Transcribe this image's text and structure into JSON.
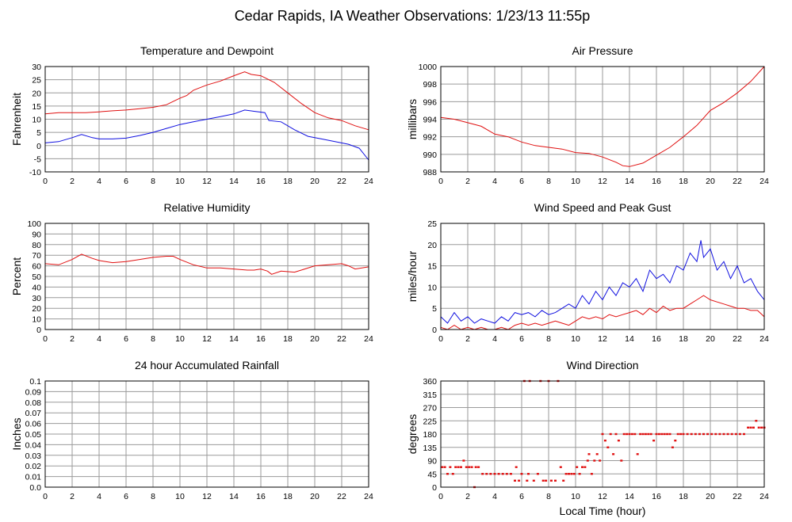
{
  "page_title": "Cedar Rapids, IA Weather Observations: 1/23/13 11:55p",
  "x_axis_label": "Local Time (hour)",
  "colors": {
    "red": "#e01010",
    "blue": "#1010e0",
    "grid": "#9a9a9a"
  },
  "chart_data": [
    {
      "type": "line",
      "title": "Temperature and Dewpoint",
      "ylabel": "Fahrenheit",
      "xlim": [
        0,
        24
      ],
      "ylim": [
        -10,
        30
      ],
      "xticks": [
        0,
        2,
        4,
        6,
        8,
        10,
        12,
        14,
        16,
        18,
        20,
        22,
        24
      ],
      "yticks": [
        -10,
        -5,
        0,
        5,
        10,
        15,
        20,
        25,
        30
      ],
      "grid": true,
      "series": [
        {
          "color": "#e01010",
          "x": [
            0,
            1,
            2,
            3,
            4,
            5,
            6,
            7,
            8,
            9,
            10,
            10.5,
            11,
            12,
            13,
            14,
            14.8,
            15.3,
            16,
            17,
            18,
            19,
            20,
            21,
            22,
            23,
            24
          ],
          "y": [
            12,
            12.5,
            12.5,
            12.5,
            12.8,
            13.2,
            13.5,
            14,
            14.5,
            15.5,
            18,
            19,
            21,
            23,
            24.5,
            26.5,
            28,
            27,
            26.5,
            24,
            20,
            16,
            12.5,
            10.5,
            9.5,
            7.5,
            6
          ]
        },
        {
          "color": "#1010e0",
          "x": [
            0,
            1,
            2,
            2.7,
            3.5,
            4,
            5,
            6,
            7,
            8,
            9,
            10,
            11,
            12,
            13,
            14,
            14.8,
            15.5,
            16.3,
            16.6,
            17.5,
            18.5,
            19.5,
            20.5,
            21.5,
            22.5,
            23.3,
            24
          ],
          "y": [
            1,
            1.5,
            3,
            4.2,
            3,
            2.5,
            2.5,
            2.8,
            3.8,
            5,
            6.5,
            8,
            9,
            10,
            11,
            12,
            13.5,
            13,
            12.5,
            9.5,
            9,
            6,
            3.5,
            2.5,
            1.5,
            0.5,
            -1,
            -5.5
          ]
        }
      ]
    },
    {
      "type": "line",
      "title": "Air Pressure",
      "ylabel": "millibars",
      "xlim": [
        0,
        24
      ],
      "ylim": [
        988,
        1000
      ],
      "xticks": [
        0,
        2,
        4,
        6,
        8,
        10,
        12,
        14,
        16,
        18,
        20,
        22,
        24
      ],
      "yticks": [
        988,
        990,
        992,
        994,
        996,
        998,
        1000
      ],
      "grid": true,
      "series": [
        {
          "color": "#e01010",
          "x": [
            0,
            1,
            2,
            3,
            4,
            5,
            6,
            7,
            8,
            9,
            10,
            11,
            12,
            13,
            13.5,
            14,
            15,
            16,
            17,
            18,
            19,
            20,
            21,
            22,
            23,
            24
          ],
          "y": [
            994.2,
            994,
            993.6,
            993.2,
            992.3,
            992,
            991.4,
            991,
            990.8,
            990.6,
            990.2,
            990.1,
            989.7,
            989.1,
            988.7,
            988.6,
            989,
            989.9,
            990.8,
            992,
            993.3,
            995,
            995.9,
            997,
            998.3,
            1000
          ]
        }
      ]
    },
    {
      "type": "line",
      "title": "Relative Humidity",
      "ylabel": "Percent",
      "xlim": [
        0,
        24
      ],
      "ylim": [
        0,
        100
      ],
      "xticks": [
        0,
        2,
        4,
        6,
        8,
        10,
        12,
        14,
        16,
        18,
        20,
        22,
        24
      ],
      "yticks": [
        0,
        10,
        20,
        30,
        40,
        50,
        60,
        70,
        80,
        90,
        100
      ],
      "grid": true,
      "series": [
        {
          "color": "#e01010",
          "x": [
            0,
            1,
            2,
            2.7,
            3.5,
            4,
            5,
            6,
            7,
            8,
            9,
            9.5,
            10,
            11,
            12,
            13,
            14,
            15,
            15.5,
            16,
            16.5,
            16.8,
            17.5,
            18.5,
            19,
            20,
            21,
            22,
            22.5,
            23,
            24
          ],
          "y": [
            62,
            61,
            66,
            71,
            67,
            65,
            63,
            64,
            66,
            68,
            69,
            69,
            66,
            61,
            58,
            58,
            57,
            56,
            56,
            57,
            55,
            52,
            55,
            54,
            56,
            60,
            61,
            62,
            60,
            57,
            59
          ]
        }
      ]
    },
    {
      "type": "line",
      "title": "Wind Speed and Peak Gust",
      "ylabel": "miles/hour",
      "xlim": [
        0,
        24
      ],
      "ylim": [
        0,
        25
      ],
      "xticks": [
        0,
        2,
        4,
        6,
        8,
        10,
        12,
        14,
        16,
        18,
        20,
        22,
        24
      ],
      "yticks": [
        0,
        5,
        10,
        15,
        20,
        25
      ],
      "grid": true,
      "series": [
        {
          "color": "#1010e0",
          "x": [
            0,
            0.5,
            1,
            1.5,
            2,
            2.5,
            3,
            3.5,
            4,
            4.5,
            5,
            5.5,
            6,
            6.5,
            7,
            7.5,
            8,
            8.5,
            9,
            9.5,
            10,
            10.5,
            11,
            11.5,
            12,
            12.5,
            13,
            13.5,
            14,
            14.5,
            15,
            15.5,
            16,
            16.5,
            17,
            17.5,
            18,
            18.5,
            19,
            19.3,
            19.5,
            20,
            20.5,
            21,
            21.5,
            22,
            22.5,
            23,
            23.5,
            24
          ],
          "y": [
            3,
            1.5,
            4,
            2,
            3,
            1.5,
            2.5,
            2,
            1.5,
            3,
            2,
            4,
            3.5,
            4,
            3,
            4.5,
            3.5,
            4,
            5,
            6,
            5,
            8,
            6,
            9,
            7,
            10,
            8,
            11,
            10,
            12,
            9,
            14,
            12,
            13,
            11,
            15,
            14,
            18,
            16,
            21,
            17,
            19,
            14,
            16,
            12,
            15,
            11,
            12,
            9,
            7
          ]
        },
        {
          "color": "#e01010",
          "x": [
            0,
            0.5,
            1,
            1.5,
            2,
            2.5,
            3,
            3.5,
            4,
            4.5,
            5,
            5.5,
            6,
            6.5,
            7,
            7.5,
            8,
            8.5,
            9,
            9.5,
            10,
            10.5,
            11,
            11.5,
            12,
            12.5,
            13,
            13.5,
            14,
            14.5,
            15,
            15.5,
            16,
            16.5,
            17,
            17.5,
            18,
            18.5,
            19,
            19.5,
            20,
            20.5,
            21,
            21.5,
            22,
            22.5,
            23,
            23.5,
            24
          ],
          "y": [
            0.5,
            0,
            1,
            0,
            0.5,
            0,
            0.5,
            0,
            0,
            0.5,
            0,
            1,
            1.5,
            1,
            1.5,
            1,
            1.5,
            2,
            1.5,
            1,
            2,
            3,
            2.5,
            3,
            2.5,
            3.5,
            3,
            3.5,
            4,
            4.5,
            3.5,
            5,
            4,
            5.5,
            4.5,
            5,
            5,
            6,
            7,
            8,
            7,
            6.5,
            6,
            5.5,
            5,
            5,
            4.5,
            4.5,
            3
          ]
        }
      ]
    },
    {
      "type": "line",
      "title": "24 hour Accumulated Rainfall",
      "ylabel": "Inches",
      "xlim": [
        0,
        24
      ],
      "ylim": [
        0,
        0.1
      ],
      "xticks": [
        0,
        2,
        4,
        6,
        8,
        10,
        12,
        14,
        16,
        18,
        20,
        22,
        24
      ],
      "yticks": [
        "0.0",
        "0.01",
        "0.02",
        "0.03",
        "0.04",
        "0.05",
        "0.06",
        "0.07",
        "0.08",
        "0.09",
        "0.1"
      ],
      "grid": true,
      "series": [
        {
          "color": "#e01010",
          "x": [
            0,
            24
          ],
          "y": [
            0,
            0
          ]
        }
      ]
    },
    {
      "type": "scatter",
      "title": "Wind Direction",
      "ylabel": "degrees",
      "xlabel": "Local Time (hour)",
      "xlim": [
        0,
        24
      ],
      "ylim": [
        0,
        360
      ],
      "xticks": [
        0,
        2,
        4,
        6,
        8,
        10,
        12,
        14,
        16,
        18,
        20,
        22,
        24
      ],
      "yticks": [
        0,
        45,
        90,
        135,
        180,
        225,
        270,
        315,
        360
      ],
      "grid": true,
      "series": [
        {
          "color": "#e01010",
          "x": [
            0.1,
            0.3,
            0.5,
            0.7,
            0.9,
            1.1,
            1.3,
            1.5,
            1.7,
            1.9,
            2.1,
            2.3,
            2.5,
            2.6,
            2.8,
            3.1,
            3.4,
            3.7,
            4.0,
            4.3,
            4.6,
            4.9,
            5.2,
            5.5,
            5.6,
            5.8,
            6.0,
            6.2,
            6.4,
            6.5,
            6.6,
            6.9,
            7.2,
            7.4,
            7.6,
            7.8,
            8.0,
            8.2,
            8.5,
            8.7,
            8.9,
            9.1,
            9.3,
            9.5,
            9.7,
            9.9,
            10.1,
            10.3,
            10.5,
            10.7,
            10.9,
            11.0,
            11.2,
            11.4,
            11.6,
            11.8,
            12.0,
            12.2,
            12.4,
            12.6,
            12.8,
            13.0,
            13.2,
            13.4,
            13.6,
            13.8,
            14.0,
            14.2,
            14.4,
            14.6,
            14.8,
            15.0,
            15.2,
            15.4,
            15.6,
            15.8,
            16.0,
            16.2,
            16.4,
            16.6,
            16.8,
            17.0,
            17.2,
            17.4,
            17.6,
            17.8,
            18.0,
            18.3,
            18.6,
            18.9,
            19.2,
            19.5,
            19.8,
            20.1,
            20.4,
            20.7,
            21.0,
            21.3,
            21.6,
            21.9,
            22.2,
            22.5,
            22.8,
            23.0,
            23.2,
            23.4,
            23.6,
            23.8,
            24.0
          ],
          "y": [
            68,
            68,
            45,
            68,
            45,
            68,
            68,
            68,
            90,
            68,
            68,
            68,
            0,
            68,
            68,
            45,
            45,
            45,
            45,
            45,
            45,
            45,
            45,
            22,
            68,
            22,
            45,
            360,
            22,
            45,
            360,
            22,
            45,
            360,
            22,
            22,
            360,
            22,
            22,
            360,
            68,
            22,
            45,
            45,
            45,
            45,
            68,
            45,
            68,
            68,
            90,
            112,
            45,
            90,
            112,
            90,
            180,
            158,
            135,
            180,
            112,
            180,
            158,
            90,
            180,
            180,
            180,
            180,
            180,
            112,
            180,
            180,
            180,
            180,
            180,
            158,
            180,
            180,
            180,
            180,
            180,
            180,
            135,
            158,
            180,
            180,
            180,
            180,
            180,
            180,
            180,
            180,
            180,
            180,
            180,
            180,
            180,
            180,
            180,
            180,
            180,
            180,
            202,
            202,
            202,
            225,
            202,
            202,
            202
          ]
        }
      ]
    }
  ]
}
